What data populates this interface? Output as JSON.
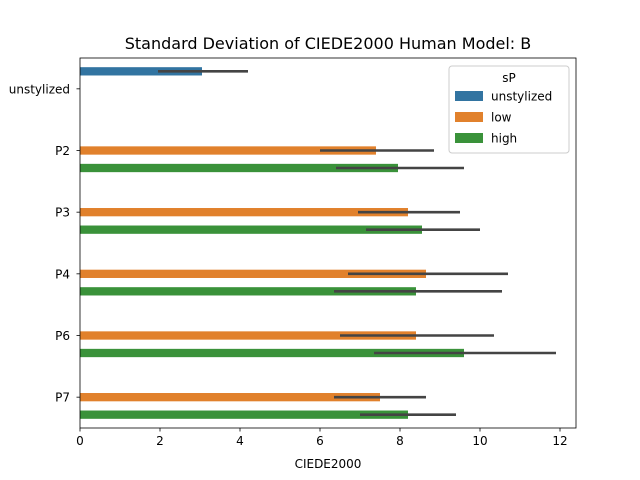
{
  "chart_data": {
    "type": "bar",
    "orientation": "horizontal",
    "title": "Standard Deviation of CIEDE2000 Human Model: B",
    "xlabel": "CIEDE2000",
    "ylabel": "",
    "xlim": [
      0,
      12.4
    ],
    "xticks": [
      0,
      2,
      4,
      6,
      8,
      10,
      12
    ],
    "categories": [
      "unstylized",
      "P2",
      "P3",
      "P4",
      "P6",
      "P7"
    ],
    "legend": {
      "title": "sP",
      "position": "top-right"
    },
    "grid": false,
    "series": [
      {
        "name": "unstylized",
        "color": "#3274a1",
        "values": [
          3.05,
          null,
          null,
          null,
          null,
          null
        ],
        "ci_low": [
          1.95,
          null,
          null,
          null,
          null,
          null
        ],
        "ci_high": [
          4.2,
          null,
          null,
          null,
          null,
          null
        ]
      },
      {
        "name": "low",
        "color": "#e1812c",
        "values": [
          null,
          7.4,
          8.2,
          8.65,
          8.4,
          7.5
        ],
        "ci_low": [
          null,
          6.0,
          6.95,
          6.7,
          6.5,
          6.35
        ],
        "ci_high": [
          null,
          8.85,
          9.5,
          10.7,
          10.35,
          8.65
        ]
      },
      {
        "name": "high",
        "color": "#3a923a",
        "values": [
          null,
          7.95,
          8.55,
          8.4,
          9.6,
          8.2
        ],
        "ci_low": [
          null,
          6.4,
          7.15,
          6.35,
          7.35,
          7.0
        ],
        "ci_high": [
          null,
          9.6,
          10.0,
          10.55,
          11.9,
          9.4
        ]
      }
    ]
  }
}
